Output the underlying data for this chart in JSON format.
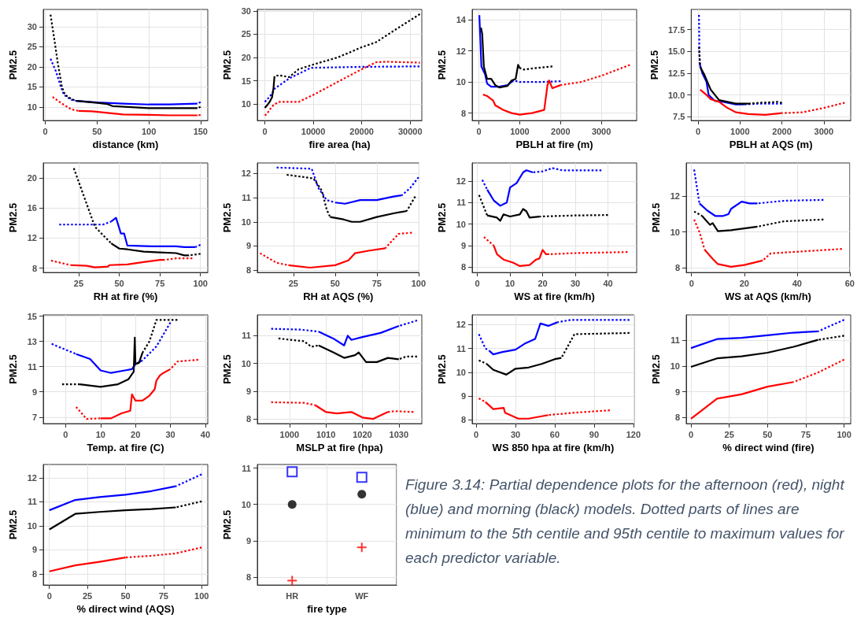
{
  "chart_data": [
    {
      "type": "line",
      "xlabel": "distance (km)",
      "ylabel": "PM2.5",
      "xlim": [
        -2,
        157
      ],
      "xticks": [
        0,
        50,
        100,
        150
      ],
      "ylim": [
        6.6,
        34.3
      ],
      "yticks": [
        10,
        15,
        20,
        25,
        30
      ],
      "grid": true,
      "series": [
        {
          "color": "#0000ff",
          "line_style": "dotted",
          "x": [
            5,
            10,
            15,
            18,
            25,
            30
          ],
          "values": [
            22,
            19,
            15,
            13,
            11.8,
            11.5
          ]
        },
        {
          "color": "#0000ff",
          "line_style": "solid",
          "x": [
            30,
            50,
            75,
            100,
            120,
            147
          ],
          "values": [
            11.5,
            11.1,
            10.8,
            10.6,
            10.6,
            10.8
          ]
        },
        {
          "color": "#0000ff",
          "line_style": "dotted",
          "x": [
            147,
            150
          ],
          "values": [
            10.8,
            11.2
          ]
        },
        {
          "color": "#000000",
          "line_style": "dotted",
          "x": [
            5,
            8,
            12,
            16,
            19,
            25,
            30
          ],
          "values": [
            33,
            28,
            21,
            15,
            13,
            12,
            11.5
          ]
        },
        {
          "color": "#000000",
          "line_style": "solid",
          "x": [
            30,
            50,
            60,
            65,
            80,
            100,
            120,
            147
          ],
          "values": [
            11.5,
            11,
            10.7,
            10.2,
            10,
            9.7,
            9.7,
            9.7
          ]
        },
        {
          "color": "#000000",
          "line_style": "dotted",
          "x": [
            147,
            150
          ],
          "values": [
            9.7,
            10
          ]
        },
        {
          "color": "#ff0000",
          "line_style": "dotted",
          "x": [
            7,
            15,
            25,
            32
          ],
          "values": [
            12.5,
            11,
            9.4,
            9
          ]
        },
        {
          "color": "#ff0000",
          "line_style": "solid",
          "x": [
            32,
            45,
            60,
            75,
            100,
            120,
            147
          ],
          "values": [
            9,
            8.9,
            8.5,
            8.1,
            8,
            7.9,
            7.9
          ]
        },
        {
          "color": "#ff0000",
          "line_style": "dotted",
          "x": [
            147,
            150
          ],
          "values": [
            7.9,
            8
          ]
        }
      ]
    },
    {
      "type": "line",
      "xlabel": "fire area (ha)",
      "ylabel": "PM2.5",
      "xlim": [
        -1540,
        32400
      ],
      "xticks": [
        0,
        10000,
        20000,
        30000
      ],
      "ylim": [
        6.5,
        30.3
      ],
      "yticks": [
        10,
        15,
        20,
        25,
        30
      ],
      "grid": true,
      "series": [
        {
          "color": "#0000ff",
          "line_style": "dotted",
          "x": [
            0,
            500,
            1000,
            1500,
            2000,
            5000,
            9500,
            20000,
            32000
          ],
          "values": [
            10.5,
            11,
            11.7,
            12.2,
            13.3,
            15.5,
            17.8,
            18,
            18.1
          ]
        },
        {
          "color": "#000000",
          "line_style": "solid",
          "x": [
            0,
            500,
            1000,
            1500,
            1800,
            2000
          ],
          "values": [
            9.2,
            9.8,
            10.5,
            11.5,
            13.5,
            16
          ]
        },
        {
          "color": "#000000",
          "line_style": "dotted",
          "x": [
            2000,
            3000,
            5000,
            7000,
            10000,
            15000,
            20000,
            23000,
            27000,
            32000
          ],
          "values": [
            16,
            16.2,
            15.8,
            17.5,
            18.5,
            20,
            22.2,
            23.3,
            26,
            29.3
          ]
        },
        {
          "color": "#ff0000",
          "line_style": "dotted",
          "x": [
            0,
            500,
            1000,
            1500,
            2000,
            3000,
            7000,
            10000,
            20000,
            23000,
            25000,
            32000
          ],
          "values": [
            7.6,
            8,
            8.8,
            9.5,
            10,
            10.5,
            10.5,
            12,
            17.5,
            19,
            19.1,
            18.9
          ]
        }
      ]
    },
    {
      "type": "line",
      "xlabel": "PBLH at fire (m)",
      "ylabel": "PM2.5",
      "xlim": [
        -166,
        3866
      ],
      "xticks": [
        0,
        1000,
        2000,
        3000
      ],
      "ylim": [
        7.52,
        14.67
      ],
      "yticks": [
        8,
        10,
        12,
        14
      ],
      "grid": true,
      "series": [
        {
          "color": "#0000ff",
          "line_style": "solid",
          "x": [
            10,
            30,
            60,
            150,
            200,
            300,
            500,
            700,
            850
          ],
          "values": [
            14.3,
            13,
            11,
            10.5,
            9.9,
            9.7,
            9.7,
            9.8,
            10.1
          ]
        },
        {
          "color": "#0000ff",
          "line_style": "dotted",
          "x": [
            850,
            1000,
            1500,
            2000
          ],
          "values": [
            10.1,
            10,
            10,
            10.05
          ]
        },
        {
          "color": "#000000",
          "line_style": "solid",
          "x": [
            50,
            80,
            120,
            200,
            300,
            400,
            500,
            700,
            800,
            900,
            960,
            1000
          ],
          "values": [
            13.5,
            13.1,
            11,
            10.2,
            10.2,
            9.8,
            9.65,
            9.75,
            10.1,
            10.2,
            11.1,
            10.9
          ]
        },
        {
          "color": "#000000",
          "line_style": "dotted",
          "x": [
            1000,
            1100,
            1400,
            1800
          ],
          "values": [
            10.9,
            10.8,
            10.9,
            11
          ]
        },
        {
          "color": "#ff0000",
          "line_style": "solid",
          "x": [
            100,
            200,
            350,
            400,
            600,
            800,
            1000,
            1300,
            1600,
            1680,
            1720,
            1800,
            2000
          ],
          "values": [
            9.2,
            9.1,
            8.8,
            8.5,
            8.2,
            8,
            7.9,
            8,
            8.2,
            9.8,
            10.1,
            9.6,
            9.8
          ]
        },
        {
          "color": "#ff0000",
          "line_style": "dotted",
          "x": [
            2000,
            2500,
            3000,
            3700
          ],
          "values": [
            9.8,
            10,
            10.4,
            11.1
          ]
        }
      ]
    },
    {
      "type": "line",
      "xlabel": "PBLH at AQS (m)",
      "ylabel": "PM2.5",
      "xlim": [
        -166,
        3643
      ],
      "xticks": [
        0,
        1000,
        2000,
        3000
      ],
      "ylim": [
        7.05,
        19.83
      ],
      "yticks": [
        7.5,
        {
          "value": 10,
          "label": "10.0"
        },
        12.5,
        {
          "value": 15,
          "label": "15.0"
        },
        17.5
      ],
      "grid": true,
      "series": [
        {
          "color": "#0000ff",
          "line_style": "dotted",
          "x": [
            20,
            30,
            40
          ],
          "values": [
            19.2,
            15,
            13.5
          ]
        },
        {
          "color": "#0000ff",
          "line_style": "solid",
          "x": [
            40,
            100,
            200,
            250,
            400,
            600,
            900,
            1100
          ],
          "values": [
            13.5,
            12.5,
            11.5,
            10,
            9.3,
            9.2,
            8.9,
            8.9
          ]
        },
        {
          "color": "#0000ff",
          "line_style": "dotted",
          "x": [
            1100,
            1500,
            2000
          ],
          "values": [
            8.9,
            9,
            9
          ]
        },
        {
          "color": "#000000",
          "line_style": "dotted",
          "x": [
            20,
            50
          ],
          "values": [
            15.5,
            13.2
          ]
        },
        {
          "color": "#000000",
          "line_style": "solid",
          "x": [
            50,
            150,
            300,
            500,
            700,
            900,
            1200
          ],
          "values": [
            13.2,
            12.3,
            10.6,
            9.4,
            9.2,
            9,
            9
          ]
        },
        {
          "color": "#000000",
          "line_style": "dotted",
          "x": [
            1200,
            1500,
            1900,
            2000
          ],
          "values": [
            9,
            9.1,
            9.2,
            9.1
          ]
        },
        {
          "color": "#ff0000",
          "line_style": "solid",
          "x": [
            50,
            200,
            300,
            500,
            700,
            900,
            1200,
            1600,
            2000
          ],
          "values": [
            10.6,
            10,
            9.5,
            9.2,
            8.5,
            8,
            7.8,
            7.7,
            7.9
          ]
        },
        {
          "color": "#ff0000",
          "line_style": "dotted",
          "x": [
            2000,
            2500,
            3000,
            3500
          ],
          "values": [
            7.9,
            8,
            8.5,
            9.1
          ]
        }
      ]
    },
    {
      "type": "line",
      "xlabel": "RH at fire (%)",
      "ylabel": "PM2.5",
      "xlim": [
        3.2,
        104.5
      ],
      "xticks": [
        25,
        50,
        75,
        100
      ],
      "ylim": [
        7.42,
        22
      ],
      "yticks": [
        8,
        12,
        16,
        20
      ],
      "grid": true,
      "series": [
        {
          "color": "#0000ff",
          "line_style": "dotted",
          "x": [
            13,
            40,
            45
          ],
          "values": [
            13.8,
            13.8,
            14.2
          ]
        },
        {
          "color": "#0000ff",
          "line_style": "solid",
          "x": [
            45,
            48,
            51,
            53,
            55,
            70,
            85,
            90,
            97
          ],
          "values": [
            14.2,
            14.7,
            12.6,
            12.6,
            11,
            10.9,
            10.9,
            10.8,
            10.8
          ]
        },
        {
          "color": "#0000ff",
          "line_style": "dotted",
          "x": [
            97,
            100
          ],
          "values": [
            10.8,
            11.1
          ]
        },
        {
          "color": "#000000",
          "line_style": "dotted",
          "x": [
            22,
            30,
            35,
            45
          ],
          "values": [
            21.3,
            16.5,
            13.5,
            11.3
          ]
        },
        {
          "color": "#000000",
          "line_style": "solid",
          "x": [
            45,
            50,
            55,
            65,
            75,
            85,
            90,
            93
          ],
          "values": [
            11.3,
            10.6,
            10.5,
            10.2,
            10.1,
            10,
            9.7,
            9.7
          ]
        },
        {
          "color": "#000000",
          "line_style": "dotted",
          "x": [
            93,
            100
          ],
          "values": [
            9.7,
            9.9
          ]
        },
        {
          "color": "#ff0000",
          "line_style": "dotted",
          "x": [
            8,
            20
          ],
          "values": [
            9,
            8.4
          ]
        },
        {
          "color": "#ff0000",
          "line_style": "solid",
          "x": [
            20,
            30,
            35,
            43,
            44,
            55,
            65,
            75,
            78
          ],
          "values": [
            8.4,
            8.3,
            8.1,
            8.2,
            8.4,
            8.5,
            8.8,
            9.1,
            9.1
          ]
        },
        {
          "color": "#ff0000",
          "line_style": "dotted",
          "x": [
            78,
            85,
            95
          ],
          "values": [
            9.1,
            9.3,
            9.3
          ]
        }
      ]
    },
    {
      "type": "line",
      "xlabel": "RH at AQS (%)",
      "ylabel": "PM2.5",
      "xlim": [
        3.4,
        100.3
      ],
      "xticks": [
        25,
        50,
        75,
        100
      ],
      "ylim": [
        7.9,
        12.44
      ],
      "yticks": [
        8,
        9,
        10,
        11,
        12
      ],
      "grid": true,
      "series": [
        {
          "color": "#0000ff",
          "line_style": "dotted",
          "x": [
            15,
            36,
            40,
            45,
            50
          ],
          "values": [
            12.25,
            12.2,
            11.4,
            10.9,
            10.8
          ]
        },
        {
          "color": "#0000ff",
          "line_style": "solid",
          "x": [
            50,
            56,
            65,
            75,
            85,
            90
          ],
          "values": [
            10.8,
            10.75,
            10.9,
            10.9,
            11.05,
            11.1
          ]
        },
        {
          "color": "#0000ff",
          "line_style": "dotted",
          "x": [
            90,
            95,
            100
          ],
          "values": [
            11.1,
            11.4,
            11.85
          ]
        },
        {
          "color": "#000000",
          "line_style": "dotted",
          "x": [
            21,
            37,
            42,
            45,
            47
          ],
          "values": [
            11.95,
            11.8,
            11.3,
            10.5,
            10.2
          ]
        },
        {
          "color": "#000000",
          "line_style": "solid",
          "x": [
            47,
            55,
            60,
            65,
            75,
            85,
            93
          ],
          "values": [
            10.2,
            10.1,
            10,
            10,
            10.2,
            10.35,
            10.45
          ]
        },
        {
          "color": "#000000",
          "line_style": "dotted",
          "x": [
            93,
            98
          ],
          "values": [
            10.45,
            11.05
          ]
        },
        {
          "color": "#ff0000",
          "line_style": "dotted",
          "x": [
            5,
            15,
            22
          ],
          "values": [
            8.7,
            8.3,
            8.2
          ]
        },
        {
          "color": "#ff0000",
          "line_style": "solid",
          "x": [
            22,
            35,
            50,
            58,
            62,
            70,
            80
          ],
          "values": [
            8.2,
            8.1,
            8.2,
            8.4,
            8.7,
            8.8,
            8.9
          ]
        },
        {
          "color": "#ff0000",
          "line_style": "dotted",
          "x": [
            80,
            88,
            96
          ],
          "values": [
            8.9,
            9.5,
            9.55
          ]
        }
      ]
    },
    {
      "type": "line",
      "xlabel": "WS at fire (km/h)",
      "ylabel": "PM2.5",
      "xlim": [
        -1.6,
        48.8
      ],
      "xticks": [
        0,
        10,
        20,
        30,
        40
      ],
      "ylim": [
        7.75,
        12.84
      ],
      "yticks": [
        8,
        9,
        10,
        11,
        12
      ],
      "grid": true,
      "series": [
        {
          "color": "#0000ff",
          "line_style": "dotted",
          "x": [
            1.5,
            3
          ],
          "values": [
            12.05,
            11.6
          ]
        },
        {
          "color": "#0000ff",
          "line_style": "solid",
          "x": [
            3,
            5,
            7,
            9,
            10,
            12,
            14,
            15,
            17
          ],
          "values": [
            11.6,
            11.1,
            10.85,
            11,
            11.7,
            11.9,
            12.4,
            12.5,
            12.4
          ]
        },
        {
          "color": "#0000ff",
          "line_style": "dotted",
          "x": [
            17,
            20,
            23,
            26,
            38
          ],
          "values": [
            12.4,
            12.45,
            12.6,
            12.5,
            12.5
          ]
        },
        {
          "color": "#000000",
          "line_style": "dotted",
          "x": [
            0.5,
            3
          ],
          "values": [
            11.35,
            10.4
          ]
        },
        {
          "color": "#000000",
          "line_style": "solid",
          "x": [
            3,
            6,
            7,
            8,
            10,
            13,
            14,
            15,
            16,
            19
          ],
          "values": [
            10.4,
            10.3,
            10.15,
            10.45,
            10.35,
            10.45,
            10.7,
            10.6,
            10.3,
            10.35
          ]
        },
        {
          "color": "#000000",
          "line_style": "dotted",
          "x": [
            19,
            30,
            40
          ],
          "values": [
            10.35,
            10.4,
            10.42
          ]
        },
        {
          "color": "#ff0000",
          "line_style": "dotted",
          "x": [
            2,
            5
          ],
          "values": [
            9.4,
            9
          ]
        },
        {
          "color": "#ff0000",
          "line_style": "solid",
          "x": [
            5,
            6,
            8,
            11,
            13,
            16,
            18,
            19,
            20,
            21,
            22
          ],
          "values": [
            9,
            8.6,
            8.35,
            8.2,
            8.05,
            8.1,
            8.35,
            8.4,
            8.8,
            8.6,
            8.6
          ]
        },
        {
          "color": "#ff0000",
          "line_style": "dotted",
          "x": [
            22,
            30,
            46
          ],
          "values": [
            8.6,
            8.65,
            8.7
          ]
        }
      ]
    },
    {
      "type": "line",
      "xlabel": "WS at AQS (km/h)",
      "ylabel": "PM2.5",
      "xlim": [
        -2,
        60
      ],
      "xticks": [
        0,
        20,
        40,
        60
      ],
      "ylim": [
        7.73,
        13.87
      ],
      "yticks": [
        8,
        10,
        12
      ],
      "grid": true,
      "series": [
        {
          "color": "#0000ff",
          "line_style": "dotted",
          "x": [
            1,
            3
          ],
          "values": [
            13.5,
            11.6
          ]
        },
        {
          "color": "#0000ff",
          "line_style": "solid",
          "x": [
            3,
            6,
            9,
            12,
            14,
            15,
            19,
            22,
            25
          ],
          "values": [
            11.6,
            11.2,
            10.9,
            10.9,
            11,
            11.3,
            11.7,
            11.6,
            11.6
          ]
        },
        {
          "color": "#0000ff",
          "line_style": "dotted",
          "x": [
            25,
            35,
            50
          ],
          "values": [
            11.6,
            11.75,
            11.8
          ]
        },
        {
          "color": "#000000",
          "line_style": "dotted",
          "x": [
            1,
            4
          ],
          "values": [
            11.15,
            10.9
          ]
        },
        {
          "color": "#000000",
          "line_style": "solid",
          "x": [
            4,
            7,
            8,
            10,
            15,
            20,
            25
          ],
          "values": [
            10.9,
            10.4,
            10.5,
            10.05,
            10.1,
            10.2,
            10.3
          ]
        },
        {
          "color": "#000000",
          "line_style": "dotted",
          "x": [
            25,
            35,
            50
          ],
          "values": [
            10.3,
            10.6,
            10.7
          ]
        },
        {
          "color": "#ff0000",
          "line_style": "dotted",
          "x": [
            1,
            3,
            5
          ],
          "values": [
            10.7,
            10,
            9
          ]
        },
        {
          "color": "#ff0000",
          "line_style": "solid",
          "x": [
            5,
            8,
            10,
            15,
            20,
            27
          ],
          "values": [
            9,
            8.5,
            8.2,
            8.05,
            8.15,
            8.4
          ]
        },
        {
          "color": "#ff0000",
          "line_style": "dotted",
          "x": [
            27,
            30,
            57
          ],
          "values": [
            8.4,
            8.8,
            9.05
          ]
        }
      ]
    },
    {
      "type": "line",
      "xlabel": "Temp. at fire (C)",
      "ylabel": "PM2.5",
      "xlim": [
        -6.4,
        40.7
      ],
      "xticks": [
        0,
        10,
        20,
        30,
        40
      ],
      "ylim": [
        6.48,
        15.1
      ],
      "yticks": [
        7,
        9,
        11,
        13,
        15
      ],
      "grid": true,
      "series": [
        {
          "color": "#0000ff",
          "line_style": "dotted",
          "x": [
            -4,
            3
          ],
          "values": [
            12.8,
            12
          ]
        },
        {
          "color": "#0000ff",
          "line_style": "solid",
          "x": [
            3,
            7,
            10,
            13,
            17,
            19,
            20,
            22
          ],
          "values": [
            12,
            11.6,
            10.7,
            10.5,
            10.7,
            10.8,
            11.2,
            11.5
          ]
        },
        {
          "color": "#0000ff",
          "line_style": "dotted",
          "x": [
            22,
            26,
            30
          ],
          "values": [
            11.5,
            12.6,
            14.5
          ]
        },
        {
          "color": "#000000",
          "line_style": "dotted",
          "x": [
            -1,
            4
          ],
          "values": [
            9.6,
            9.6
          ]
        },
        {
          "color": "#000000",
          "line_style": "solid",
          "x": [
            4,
            10,
            15,
            18,
            19.5,
            19.8,
            20,
            21,
            22
          ],
          "values": [
            9.6,
            9.4,
            9.6,
            10,
            10.6,
            13.3,
            11.2,
            11.3,
            12.1
          ]
        },
        {
          "color": "#000000",
          "line_style": "dotted",
          "x": [
            22,
            24,
            26,
            32
          ],
          "values": [
            12.1,
            13,
            14.7,
            14.7
          ]
        },
        {
          "color": "#ff0000",
          "line_style": "dotted",
          "x": [
            3,
            6,
            10
          ],
          "values": [
            7.8,
            6.85,
            6.9
          ]
        },
        {
          "color": "#ff0000",
          "line_style": "solid",
          "x": [
            10,
            13,
            16,
            18.5,
            19,
            20,
            22,
            24,
            25.5,
            26,
            27,
            28,
            30
          ],
          "values": [
            6.9,
            6.9,
            7.3,
            7.5,
            8.8,
            8.3,
            8.3,
            8.7,
            9.2,
            9.9,
            10.3,
            10.5,
            10.8
          ]
        },
        {
          "color": "#ff0000",
          "line_style": "dotted",
          "x": [
            30,
            32,
            38
          ],
          "values": [
            10.8,
            11.4,
            11.55
          ]
        }
      ]
    },
    {
      "type": "line",
      "xlabel": "MSLP at fire (hpa)",
      "ylabel": "PM2.5",
      "xlim": [
        991.2,
        1036.3
      ],
      "xticks": [
        1000,
        1010,
        1020,
        1030
      ],
      "ylim": [
        7.83,
        11.75
      ],
      "yticks": [
        8,
        9,
        10,
        11
      ],
      "grid": true,
      "series": [
        {
          "color": "#0000ff",
          "line_style": "dotted",
          "x": [
            995,
            1003,
            1008
          ],
          "values": [
            11.25,
            11.22,
            11.15
          ]
        },
        {
          "color": "#0000ff",
          "line_style": "solid",
          "x": [
            1008,
            1012,
            1015,
            1016,
            1017,
            1020,
            1025,
            1030
          ],
          "values": [
            11.15,
            10.9,
            10.65,
            11,
            10.85,
            10.95,
            11.1,
            11.35
          ]
        },
        {
          "color": "#0000ff",
          "line_style": "dotted",
          "x": [
            1030,
            1035
          ],
          "values": [
            11.35,
            11.55
          ]
        },
        {
          "color": "#000000",
          "line_style": "dotted",
          "x": [
            997,
            1004,
            1006,
            1008
          ],
          "values": [
            10.9,
            10.8,
            10.6,
            10.65
          ]
        },
        {
          "color": "#000000",
          "line_style": "solid",
          "x": [
            1008,
            1012,
            1015,
            1018,
            1019,
            1021,
            1024,
            1027,
            1030
          ],
          "values": [
            10.65,
            10.4,
            10.2,
            10.3,
            10.4,
            10.05,
            10.05,
            10.2,
            10.15
          ]
        },
        {
          "color": "#000000",
          "line_style": "dotted",
          "x": [
            1030,
            1032,
            1035
          ],
          "values": [
            10.15,
            10.25,
            10.25
          ]
        },
        {
          "color": "#ff0000",
          "line_style": "dotted",
          "x": [
            995,
            1004,
            1007
          ],
          "values": [
            8.6,
            8.58,
            8.5
          ]
        },
        {
          "color": "#ff0000",
          "line_style": "solid",
          "x": [
            1007,
            1010,
            1013,
            1017,
            1020,
            1023,
            1027
          ],
          "values": [
            8.5,
            8.25,
            8.2,
            8.25,
            8.05,
            8,
            8.25
          ]
        },
        {
          "color": "#ff0000",
          "line_style": "dotted",
          "x": [
            1027,
            1029,
            1034
          ],
          "values": [
            8.25,
            8.28,
            8.25
          ]
        }
      ]
    },
    {
      "type": "line",
      "xlabel": "WS 850 hpa at fire (km/h)",
      "ylabel": "PM2.5",
      "xlim": [
        -3.1,
        120.6
      ],
      "xticks": [
        0,
        30,
        60,
        90,
        120
      ],
      "ylim": [
        7.84,
        12.41
      ],
      "yticks": [
        8,
        9,
        10,
        11,
        12
      ],
      "grid": true,
      "series": [
        {
          "color": "#0000ff",
          "line_style": "dotted",
          "x": [
            2,
            7,
            10
          ],
          "values": [
            11.6,
            11,
            10.9
          ]
        },
        {
          "color": "#0000ff",
          "line_style": "solid",
          "x": [
            10,
            13,
            20,
            30,
            37,
            45,
            49,
            55,
            62
          ],
          "values": [
            10.9,
            10.75,
            10.85,
            10.95,
            11.2,
            11.4,
            12.05,
            11.95,
            12.1
          ]
        },
        {
          "color": "#0000ff",
          "line_style": "dotted",
          "x": [
            62,
            72,
            117
          ],
          "values": [
            12.1,
            12.2,
            12.2
          ]
        },
        {
          "color": "#000000",
          "line_style": "dotted",
          "x": [
            2,
            8
          ],
          "values": [
            10.5,
            10.35
          ]
        },
        {
          "color": "#000000",
          "line_style": "solid",
          "x": [
            8,
            13,
            23,
            30,
            40,
            50,
            60,
            65
          ],
          "values": [
            10.35,
            10.1,
            9.9,
            10.15,
            10.2,
            10.35,
            10.55,
            10.6
          ]
        },
        {
          "color": "#000000",
          "line_style": "dotted",
          "x": [
            65,
            75,
            117
          ],
          "values": [
            10.6,
            11.6,
            11.65
          ]
        },
        {
          "color": "#ff0000",
          "line_style": "dotted",
          "x": [
            2,
            7
          ],
          "values": [
            8.9,
            8.75
          ]
        },
        {
          "color": "#ff0000",
          "line_style": "solid",
          "x": [
            7,
            13,
            21,
            22,
            32,
            40,
            55
          ],
          "values": [
            8.75,
            8.45,
            8.5,
            8.3,
            8.05,
            8.05,
            8.2
          ]
        },
        {
          "color": "#ff0000",
          "line_style": "dotted",
          "x": [
            55,
            75,
            102
          ],
          "values": [
            8.2,
            8.3,
            8.4
          ]
        }
      ]
    },
    {
      "type": "line",
      "xlabel": "% direct wind (fire)",
      "ylabel": "PM2.5",
      "xlim": [
        -3.1,
        104.3
      ],
      "xticks": [
        0,
        25,
        50,
        75,
        100
      ],
      "ylim": [
        7.76,
        11.99
      ],
      "yticks": [
        8,
        9,
        10,
        11
      ],
      "grid": true,
      "series": [
        {
          "color": "#0000ff",
          "line_style": "solid",
          "x": [
            0,
            17,
            33,
            50,
            67,
            83
          ],
          "values": [
            10.7,
            11.05,
            11.1,
            11.2,
            11.3,
            11.35
          ]
        },
        {
          "color": "#0000ff",
          "line_style": "dotted",
          "x": [
            83,
            100
          ],
          "values": [
            11.35,
            11.8
          ]
        },
        {
          "color": "#000000",
          "line_style": "solid",
          "x": [
            0,
            17,
            33,
            50,
            67,
            83
          ],
          "values": [
            9.97,
            10.3,
            10.38,
            10.52,
            10.75,
            11.02
          ]
        },
        {
          "color": "#000000",
          "line_style": "dotted",
          "x": [
            83,
            100
          ],
          "values": [
            11.02,
            11.18
          ]
        },
        {
          "color": "#ff0000",
          "line_style": "solid",
          "x": [
            0,
            17,
            33,
            50,
            67
          ],
          "values": [
            7.95,
            8.73,
            8.9,
            9.2,
            9.38
          ]
        },
        {
          "color": "#ff0000",
          "line_style": "dotted",
          "x": [
            67,
            83,
            100
          ],
          "values": [
            9.38,
            9.75,
            10.25
          ]
        }
      ]
    },
    {
      "type": "line",
      "xlabel": "% direct wind (AQS)",
      "ylabel": "PM2.5",
      "xlim": [
        -4,
        104
      ],
      "xticks": [
        0,
        25,
        50,
        75,
        100
      ],
      "ylim": [
        7.53,
        12.56
      ],
      "yticks": [
        8,
        9,
        10,
        11,
        12
      ],
      "grid": true,
      "series": [
        {
          "color": "#0000ff",
          "line_style": "solid",
          "x": [
            0,
            17,
            33,
            50,
            67,
            83
          ],
          "values": [
            10.65,
            11.08,
            11.2,
            11.3,
            11.45,
            11.65
          ]
        },
        {
          "color": "#0000ff",
          "line_style": "dotted",
          "x": [
            83,
            100
          ],
          "values": [
            11.65,
            12.15
          ]
        },
        {
          "color": "#000000",
          "line_style": "solid",
          "x": [
            0,
            17,
            33,
            50,
            67,
            83
          ],
          "values": [
            9.85,
            10.5,
            10.58,
            10.65,
            10.7,
            10.77
          ]
        },
        {
          "color": "#000000",
          "line_style": "dotted",
          "x": [
            83,
            100
          ],
          "values": [
            10.77,
            11.02
          ]
        },
        {
          "color": "#ff0000",
          "line_style": "solid",
          "x": [
            0,
            17,
            33,
            50
          ],
          "values": [
            8.1,
            8.35,
            8.5,
            8.68
          ]
        },
        {
          "color": "#ff0000",
          "line_style": "dotted",
          "x": [
            50,
            67,
            83,
            100
          ],
          "values": [
            8.68,
            8.75,
            8.85,
            9.1
          ]
        }
      ]
    },
    {
      "type": "scatter",
      "xlabel": "fire type",
      "ylabel": "PM2.5",
      "categories": [
        "HR",
        "WF"
      ],
      "ylim": [
        7.78,
        11.1
      ],
      "yticks": [
        8,
        9,
        10,
        11
      ],
      "grid": true,
      "series": [
        {
          "color": "#0000ff",
          "marker": "square",
          "values": [
            10.9,
            10.75
          ]
        },
        {
          "color": "#000000",
          "marker": "circle",
          "values": [
            10,
            10.28
          ]
        },
        {
          "color": "#ff0000",
          "marker": "cross",
          "values": [
            7.9,
            8.82
          ]
        }
      ]
    },
    {
      "type": "other",
      "annotations": [
        "Figure 3.14: Partial dependence plots for the afternoon (red), night (blue) and morning (black) models. Dotted parts of lines are minimum to the 5th centile and 95th centile to maximum values for each predictor variable."
      ]
    }
  ]
}
